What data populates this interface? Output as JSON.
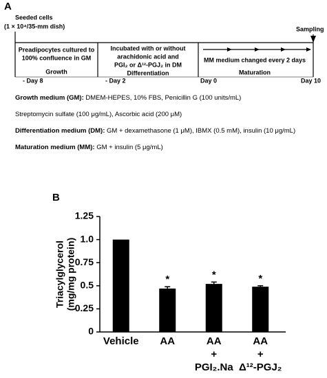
{
  "panel_a": {
    "label": "A",
    "seeded": [
      "Seeded cells",
      "(1 × 10⁴/35-mm dish)"
    ],
    "sampling": "Sampling",
    "days": [
      "- Day 8",
      "- Day 2",
      "Day 0",
      "Day 10"
    ],
    "stages": [
      {
        "lines": [
          "Preadipocytes cultured to",
          "100% confluence in GM"
        ],
        "name": "Growth"
      },
      {
        "lines": [
          "Incubated with or without",
          "arachidonic acid and",
          "PGI₂ or Δ¹²-PGJ₂ in DM"
        ],
        "name": "Differentiation"
      },
      {
        "lines": [
          "MM medium changed every 2 days"
        ],
        "name": "Maturation"
      }
    ],
    "media": [
      {
        "label": "Growth medium (GM):",
        "text": " DMEM-HEPES, 10% FBS, Penicillin G (100 units/mL)"
      },
      {
        "label": "",
        "text": "Streptomycin sulfate (100 μg/mL), Ascorbic acid (200 μM)"
      },
      {
        "label": "Differentiation medium (DM):",
        "text": " GM + dexamethasone (1 μM), IBMX (0.5 mM), insulin (10 μg/mL)"
      },
      {
        "label": "Maturation medium (MM):",
        "text": " GM + insulin (5 μg/mL)"
      }
    ]
  },
  "chart_data": {
    "type": "bar",
    "panel_label": "B",
    "y_label": [
      "Triacylglycerol",
      "(mg/mg protein)"
    ],
    "categories": [
      [
        "Vehicle"
      ],
      [
        "AA"
      ],
      [
        "AA",
        "+",
        "PGI₂.Na"
      ],
      [
        "AA",
        "+",
        "Δ¹²-PGJ₂"
      ]
    ],
    "values": [
      1.0,
      0.47,
      0.52,
      0.49
    ],
    "errors": [
      null,
      0.02,
      0.02,
      0.01
    ],
    "significance": [
      null,
      "*",
      "*",
      "*"
    ],
    "color": "#000000",
    "ylim": [
      0,
      1.25
    ],
    "yticks": [
      0,
      0.25,
      0.5,
      0.75,
      {
        "value": 1,
        "label": "1.0"
      },
      1.25
    ]
  }
}
